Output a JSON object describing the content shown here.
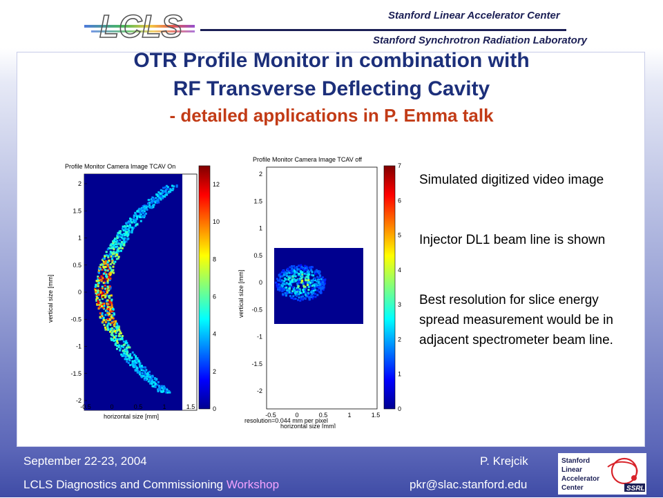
{
  "header": {
    "logo_text": "LCLS",
    "lab_line1": "Stanford Linear Accelerator Center",
    "lab_line2": "Stanford Synchrotron Radiation Laboratory"
  },
  "title": {
    "line1": "OTR Profile Monitor in combination with",
    "line2": "RF Transverse Deflecting Cavity",
    "subtitle": "- detailed applications in P. Emma talk"
  },
  "plot_left": {
    "title": "Profile Monitor Camera Image TCAV On",
    "xlabel": "horizontal size [mm]",
    "ylabel": "vertical size [mm]",
    "x_ticks": [
      "-0.5",
      "0",
      "0.5",
      "1",
      "1.5"
    ],
    "y_ticks": [
      "2",
      "1.5",
      "1",
      "0.5",
      "0",
      "-0.5",
      "-1",
      "-1.5",
      "-2"
    ],
    "colorbar_ticks": [
      "12",
      "10",
      "8",
      "6",
      "4",
      "2",
      "0"
    ],
    "colorbar_max": 13
  },
  "plot_right": {
    "title": "Profile Monitor Camera Image TCAV off",
    "xlabel": "horizontal size [mm]",
    "ylabel": "vertical size [mm]",
    "x_ticks": [
      "-0.5",
      "0",
      "0.5",
      "1",
      "1.5"
    ],
    "y_ticks": [
      "2",
      "1.5",
      "1",
      "0.5",
      "0",
      "-0.5",
      "-1",
      "-1.5",
      "-2"
    ],
    "colorbar_ticks": [
      "7",
      "6",
      "5",
      "4",
      "3",
      "2",
      "1",
      "0"
    ],
    "colorbar_max": 7,
    "resolution_note": "resolution=0.044  mm per pixel"
  },
  "side_text": {
    "p1": "Simulated digitized  video image",
    "p2": "Injector DL1 beam line is shown",
    "p3": "Best resolution for slice energy spread measurement would be in adjacent spectrometer beam line."
  },
  "footer": {
    "date": "September 22-23, 2004",
    "author": "P. Krejcik",
    "event_main": "LCLS Diagnostics and Commissioning ",
    "event_highlight": "Workshop",
    "email": "pkr@slac.stanford.edu",
    "slac_logo_line1": "Stanford",
    "slac_logo_line2": "Linear",
    "slac_logo_line3": "Accelerator",
    "slac_logo_line4": "Center",
    "ssrl_badge": "SSRL"
  },
  "colors": {
    "background_top": "#ffffff",
    "background_bottom": "#3f4ca6",
    "title": "#1c2f7a",
    "subtitle": "#c23b16",
    "footer_highlight": "#f4a3ff",
    "image_bg": "#00008f"
  }
}
